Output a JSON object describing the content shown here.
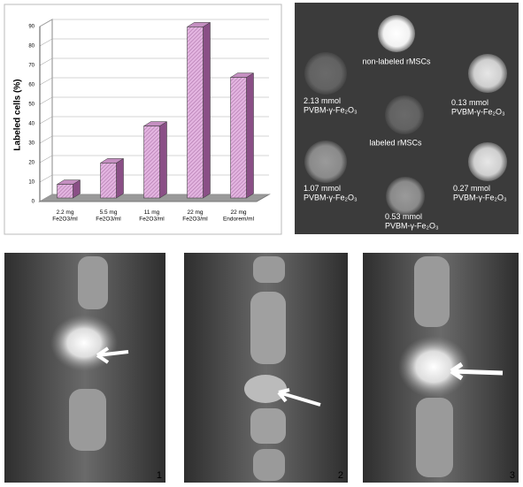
{
  "chart_data": {
    "type": "bar3d",
    "ylabel": "Labeled cells (%)",
    "categories": [
      "2.2 mg\nFe2O3/ml",
      "5.5 mg\nFe2O3/ml",
      "11 mg\nFe2O3/ml",
      "22 mg\nFe2O3/ml",
      "22 mg\nEndorem/ml"
    ],
    "values": [
      7,
      18,
      37,
      88,
      62
    ],
    "color": "#d9a6d6",
    "ylim": [
      0,
      90
    ],
    "yticks": [
      0,
      10,
      20,
      30,
      40,
      50,
      60,
      70,
      80,
      90
    ],
    "grid": true
  },
  "mri_panel": {
    "labels": [
      "non-labeled rMSCs",
      "2.13 mmol\nPVBM-γ-Fe₂O₃",
      "0.13 mmol\nPVBM-γ-Fe₂O₃",
      "labeled rMSCs",
      "1.07 mmol\nPVBM-γ-Fe₂O₃",
      "0.27 mmol\nPVBM-γ-Fe₂O₃",
      "0.53 mmol\nPVBM-γ-Fe₂O₃"
    ]
  },
  "xray_panels": {
    "labels": [
      "1",
      "2",
      "3"
    ]
  }
}
